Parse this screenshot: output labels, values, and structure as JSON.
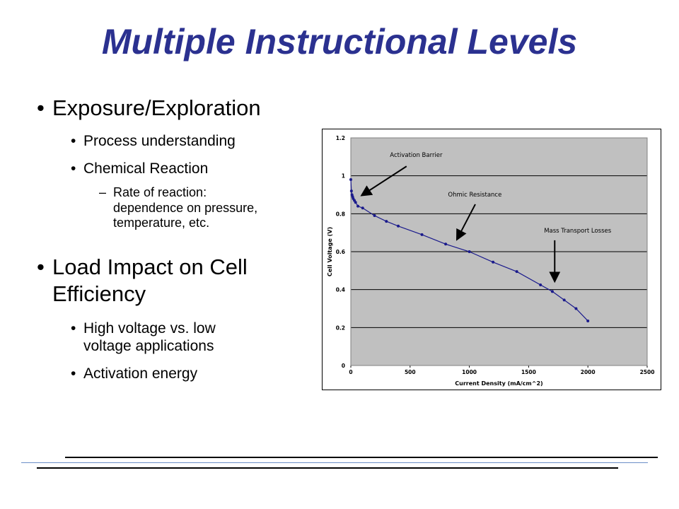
{
  "slide": {
    "title": "Multiple Instructional Levels"
  },
  "bullets": {
    "b1": "Exposure/Exploration",
    "b1_1": "Process understanding",
    "b1_2": "Chemical Reaction",
    "b1_2_1_a": "Rate of reaction:",
    "b1_2_1_b": "dependence on pressure,",
    "b1_2_1_c": "temperature, etc.",
    "b2_a": "Load Impact on Cell",
    "b2_b": "Efficiency",
    "b2_1_a": "High voltage vs. low",
    "b2_1_b": "voltage applications",
    "b2_2": "Activation energy",
    "bullet_glyph": "•",
    "dash_glyph": "–"
  },
  "chart_data": {
    "type": "line",
    "xlabel": "Current Density (mA/cm^2)",
    "ylabel": "Cell Voltage (V)",
    "xlim": [
      0,
      2500
    ],
    "ylim": [
      0,
      1.2
    ],
    "x_ticks": [
      0,
      500,
      1000,
      1500,
      2000,
      2500
    ],
    "y_ticks": [
      0,
      0.2,
      0.4,
      0.6,
      0.8,
      1,
      1.2
    ],
    "x_tick_labels": [
      "0",
      "500",
      "1000",
      "1500",
      "2000",
      "2500"
    ],
    "y_tick_labels": [
      "0",
      "0.2",
      "0.4",
      "0.6",
      "0.8",
      "1",
      "1.2"
    ],
    "grid": true,
    "plot_background": "#c0c0c0",
    "series": [
      {
        "color": "#1a1a8c",
        "x": [
          0,
          5,
          10,
          15,
          20,
          30,
          40,
          60,
          100,
          200,
          300,
          400,
          600,
          800,
          1000,
          1200,
          1400,
          1600,
          1700,
          1800,
          1900,
          2000
        ],
        "y": [
          0.98,
          0.92,
          0.9,
          0.89,
          0.88,
          0.87,
          0.86,
          0.84,
          0.83,
          0.79,
          0.76,
          0.735,
          0.69,
          0.64,
          0.6,
          0.545,
          0.495,
          0.425,
          0.39,
          0.345,
          0.3,
          0.235
        ]
      }
    ],
    "annotations": [
      {
        "text": "Activation Barrier",
        "x": 330,
        "y": 1.1,
        "arrow_from": [
          470,
          1.05
        ],
        "arrow_to": [
          100,
          0.9
        ]
      },
      {
        "text": "Ohmic Resistance",
        "x": 820,
        "y": 0.89,
        "arrow_from": [
          1050,
          0.85
        ],
        "arrow_to": [
          900,
          0.67
        ]
      },
      {
        "text": "Mass Transport Losses",
        "x": 1630,
        "y": 0.7,
        "arrow_from": [
          1720,
          0.66
        ],
        "arrow_to": [
          1720,
          0.45
        ]
      }
    ]
  }
}
